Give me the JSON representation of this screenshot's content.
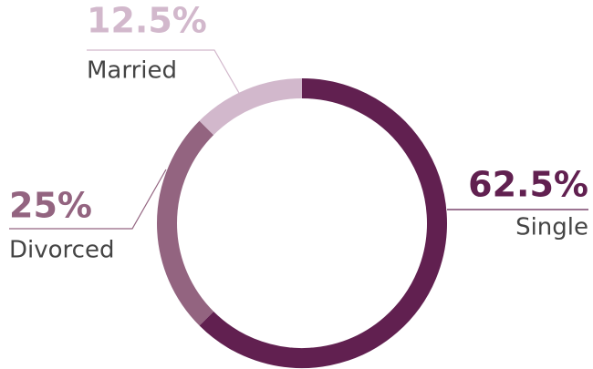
{
  "chart_data": {
    "type": "donut",
    "categories": [
      "Single",
      "Divorced",
      "Married"
    ],
    "values": [
      62.5,
      25,
      12.5
    ],
    "value_labels": [
      "62.5%",
      "25%",
      "12.5%"
    ],
    "colors": [
      "#612050",
      "#936480",
      "#d2b8cc"
    ]
  }
}
